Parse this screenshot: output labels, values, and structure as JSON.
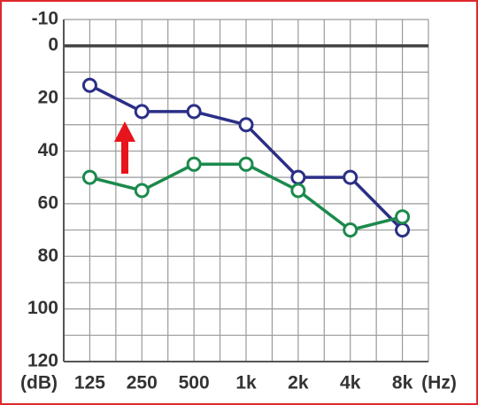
{
  "chart_data": {
    "type": "line",
    "categories": [
      "125",
      "250",
      "500",
      "1k",
      "2k",
      "4k",
      "8k"
    ],
    "x_unit": "(Hz)",
    "y_unit": "(dB)",
    "series": [
      {
        "color": "#2b2f86",
        "values": [
          15,
          25,
          25,
          30,
          50,
          50,
          70
        ]
      },
      {
        "color": "#1b8a4c",
        "values": [
          50,
          55,
          45,
          45,
          55,
          70,
          65
        ]
      }
    ],
    "ylim": [
      -10,
      120
    ],
    "y_inverted": true,
    "yticks": [
      -10,
      0,
      20,
      40,
      60,
      80,
      100,
      120
    ],
    "yminor_ticks": [
      10,
      30,
      50,
      70,
      90,
      110
    ],
    "grid": true
  }
}
